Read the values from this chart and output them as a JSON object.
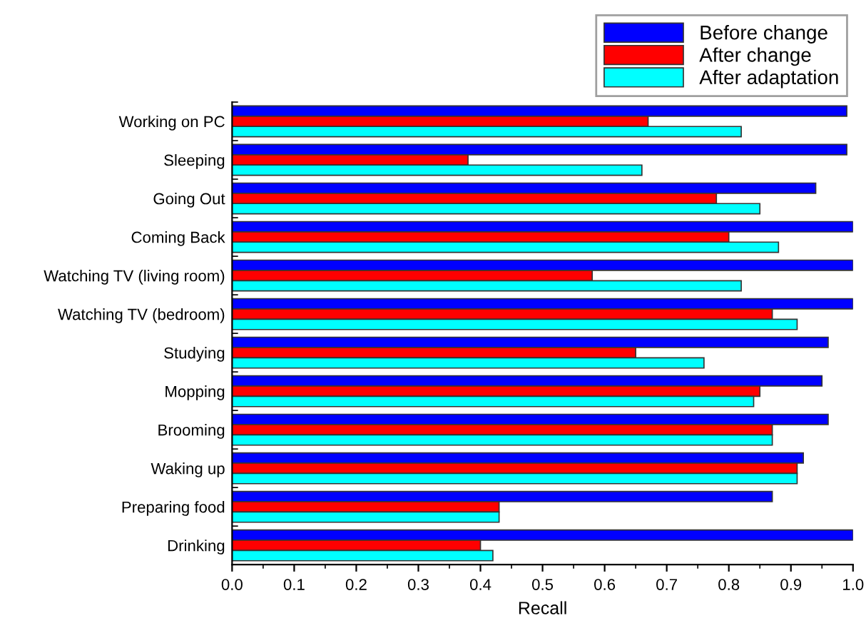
{
  "chart_data": {
    "type": "bar",
    "orientation": "horizontal",
    "xlabel": "Recall",
    "categories": [
      "Working on PC",
      "Sleeping",
      "Going Out",
      "Coming Back",
      "Watching TV (living room)",
      "Watching TV (bedroom)",
      "Studying",
      "Mopping",
      "Brooming",
      "Waking up",
      "Preparing food",
      "Drinking"
    ],
    "series": [
      {
        "name": "Before change",
        "color": "#0000ff",
        "values": [
          0.99,
          0.99,
          0.94,
          1.0,
          1.0,
          1.0,
          0.96,
          0.95,
          0.96,
          0.92,
          0.87,
          1.0
        ]
      },
      {
        "name": "After change",
        "color": "#ff0000",
        "values": [
          0.67,
          0.38,
          0.78,
          0.8,
          0.58,
          0.87,
          0.65,
          0.85,
          0.87,
          0.91,
          0.43,
          0.4
        ]
      },
      {
        "name": "After adaptation",
        "color": "#00ffff",
        "values": [
          0.82,
          0.66,
          0.85,
          0.88,
          0.82,
          0.91,
          0.76,
          0.84,
          0.87,
          0.91,
          0.43,
          0.42
        ]
      }
    ],
    "xlim": [
      0.0,
      1.0
    ],
    "xticks": [
      {
        "value": 0,
        "label": "0.0"
      },
      0.1,
      0.2,
      0.3,
      0.4,
      0.5,
      0.6,
      0.7,
      0.8,
      0.9,
      {
        "value": 1,
        "label": "1.0"
      }
    ],
    "grid": false,
    "legend": "top right"
  }
}
